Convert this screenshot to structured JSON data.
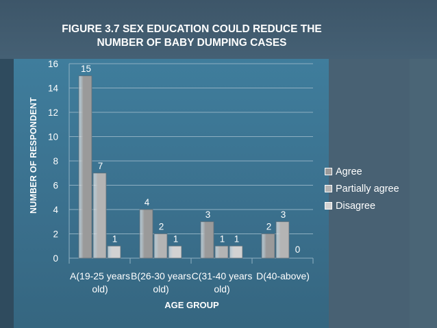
{
  "chart_data": {
    "type": "bar",
    "title": "FIGURE 3.7 SEX EDUCATION COULD REDUCE THE NUMBER OF BABY DUMPING CASES",
    "xlabel": "AGE GROUP",
    "ylabel": "NUMBER OF RESPONDENT",
    "categories": [
      "A(19-25 years old)",
      "B(26-30 years old)",
      "C(31-40 years old)",
      "D(40-above)"
    ],
    "series": [
      {
        "name": "Agree",
        "values": [
          15,
          4,
          3,
          2
        ],
        "color": "#9a9a9a"
      },
      {
        "name": "Partially agree",
        "values": [
          7,
          2,
          1,
          3
        ],
        "color": "#b4b4b4"
      },
      {
        "name": "Disagree",
        "values": [
          1,
          1,
          1,
          0
        ],
        "color": "#d2d2d2"
      }
    ],
    "ylim": [
      0,
      16
    ],
    "yticks": [
      "0",
      "2",
      "4",
      "6",
      "8",
      "10",
      "12",
      "14",
      "16"
    ],
    "grid": true,
    "legend_position": "right",
    "data_labels": true
  }
}
